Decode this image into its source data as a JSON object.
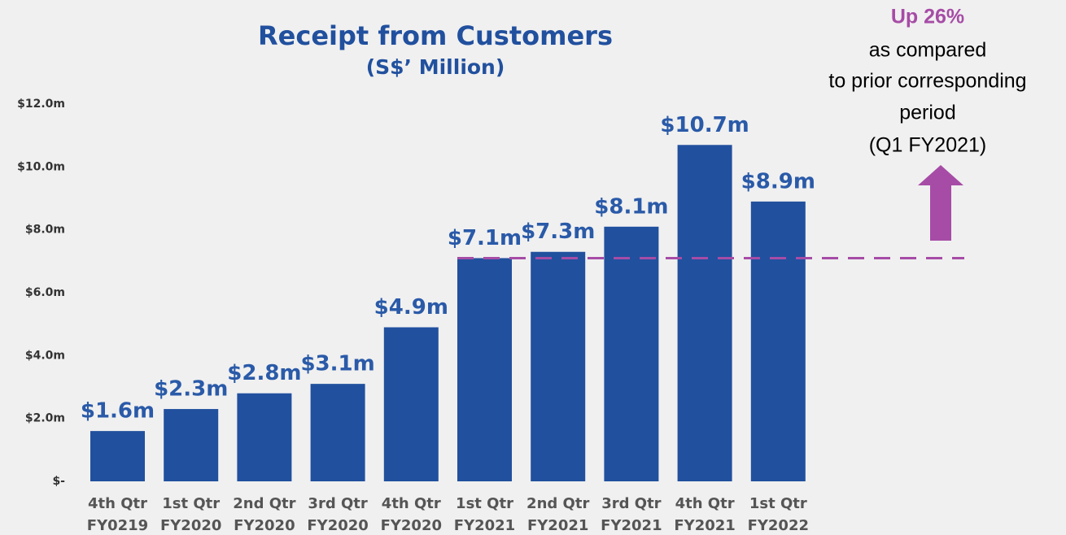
{
  "chart_data": {
    "type": "bar",
    "title": "Receipt from Customers",
    "subtitle": "(S$’ Million)",
    "categories": [
      [
        "4th Qtr",
        "FY0219"
      ],
      [
        "1st Qtr",
        "FY2020"
      ],
      [
        "2nd Qtr",
        "FY2020"
      ],
      [
        "3rd Qtr",
        "FY2020"
      ],
      [
        "4th Qtr",
        "FY2020"
      ],
      [
        "1st Qtr",
        "FY2021"
      ],
      [
        "2nd Qtr",
        "FY2021"
      ],
      [
        "3rd Qtr",
        "FY2021"
      ],
      [
        "4th Qtr",
        "FY2021"
      ],
      [
        "1st Qtr",
        "FY2022"
      ]
    ],
    "values": [
      1.6,
      2.3,
      2.8,
      3.1,
      4.9,
      7.1,
      7.3,
      8.1,
      10.7,
      8.9
    ],
    "value_labels": [
      "$1.6m",
      "$2.3m",
      "$2.8m",
      "$3.1m",
      "$4.9m",
      "$7.1m",
      "$7.3m",
      "$8.1m",
      "$10.7m",
      "$8.9m"
    ],
    "color": "#21509e",
    "ylim": [
      0,
      12
    ],
    "yticks": [
      {
        "value": 0,
        "label": "$-"
      },
      {
        "value": 2,
        "label": "$2.0m"
      },
      {
        "value": 4,
        "label": "$4.0m"
      },
      {
        "value": 6,
        "label": "$6.0m"
      },
      {
        "value": 8,
        "label": "$8.0m"
      },
      {
        "value": 10,
        "label": "$10.0m"
      },
      {
        "value": 12,
        "label": "$12.0m"
      }
    ],
    "grid": false,
    "reference_line": {
      "value": 7.1,
      "color": "#a64ca6"
    },
    "annotation": [
      "Up 26%",
      "as compared",
      "to prior corresponding",
      "period",
      "(Q1 FY2021)"
    ]
  }
}
